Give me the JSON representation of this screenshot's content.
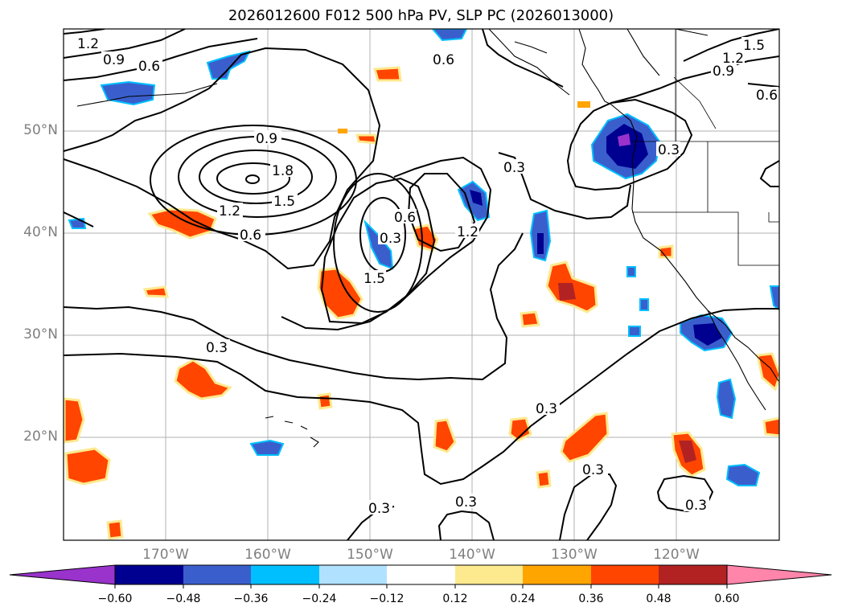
{
  "title": "2026012600 F012 500 hPa PV, SLP PC (2026013000)",
  "lat_labels": [
    "50°N",
    "40°N",
    "30°N",
    "20°N"
  ],
  "lon_labels": [
    "170°W",
    "160°W",
    "150°W",
    "140°W",
    "130°W",
    "120°W"
  ],
  "contour_labels": [
    "1.2",
    "0.9",
    "0.6",
    "0.6",
    "1.5",
    "1.2",
    "0.9",
    "0.6",
    "0.9",
    "1.8",
    "1.5",
    "1.2",
    "0.6",
    "0.6",
    "0.3",
    "1.5",
    "1.2",
    "0.3",
    "0.3",
    "0.3",
    "0.3",
    "0.3",
    "0.3",
    "0.3",
    "0.3"
  ],
  "colorbar": {
    "ticks": [
      "−0.60",
      "−0.48",
      "−0.36",
      "−0.24",
      "−0.12",
      "0.12",
      "0.24",
      "0.36",
      "0.48",
      "0.60"
    ],
    "colors": [
      "#9933cc",
      "#000090",
      "#3a5fcd",
      "#00bfff",
      "#b0e2ff",
      "#ffffff",
      "#fde98e",
      "#ffa500",
      "#ff4500",
      "#b22222",
      "#ff85aa"
    ]
  }
}
